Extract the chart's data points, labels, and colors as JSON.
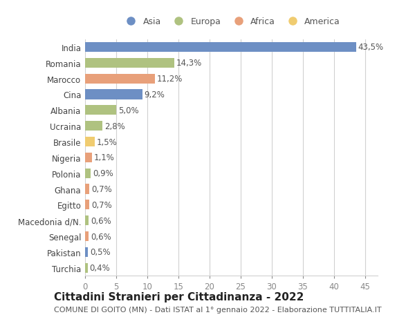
{
  "countries": [
    "India",
    "Romania",
    "Marocco",
    "Cina",
    "Albania",
    "Ucraina",
    "Brasile",
    "Nigeria",
    "Polonia",
    "Ghana",
    "Egitto",
    "Macedonia d/N.",
    "Senegal",
    "Pakistan",
    "Turchia"
  ],
  "values": [
    43.5,
    14.3,
    11.2,
    9.2,
    5.0,
    2.8,
    1.5,
    1.1,
    0.9,
    0.7,
    0.7,
    0.6,
    0.6,
    0.5,
    0.4
  ],
  "labels": [
    "43,5%",
    "14,3%",
    "11,2%",
    "9,2%",
    "5,0%",
    "2,8%",
    "1,5%",
    "1,1%",
    "0,9%",
    "0,7%",
    "0,7%",
    "0,6%",
    "0,6%",
    "0,5%",
    "0,4%"
  ],
  "colors": [
    "#6d8fc4",
    "#afc280",
    "#e8a07a",
    "#6d8fc4",
    "#afc280",
    "#afc280",
    "#f0cc70",
    "#e8a07a",
    "#afc280",
    "#e8a07a",
    "#e8a07a",
    "#afc280",
    "#e8a07a",
    "#6d8fc4",
    "#afc280"
  ],
  "legend_labels": [
    "Asia",
    "Europa",
    "Africa",
    "America"
  ],
  "legend_colors": [
    "#6d8fc4",
    "#afc280",
    "#e8a07a",
    "#f0cc70"
  ],
  "title": "Cittadini Stranieri per Cittadinanza - 2022",
  "subtitle": "COMUNE DI GOITO (MN) - Dati ISTAT al 1° gennaio 2022 - Elaborazione TUTTITALIA.IT",
  "xlim": [
    0,
    47
  ],
  "xticks": [
    0,
    5,
    10,
    15,
    20,
    25,
    30,
    35,
    40,
    45
  ],
  "background_color": "#ffffff",
  "grid_color": "#d0d0d0",
  "bar_height": 0.62,
  "title_fontsize": 11,
  "subtitle_fontsize": 8,
  "tick_fontsize": 8.5,
  "label_fontsize": 8.5
}
